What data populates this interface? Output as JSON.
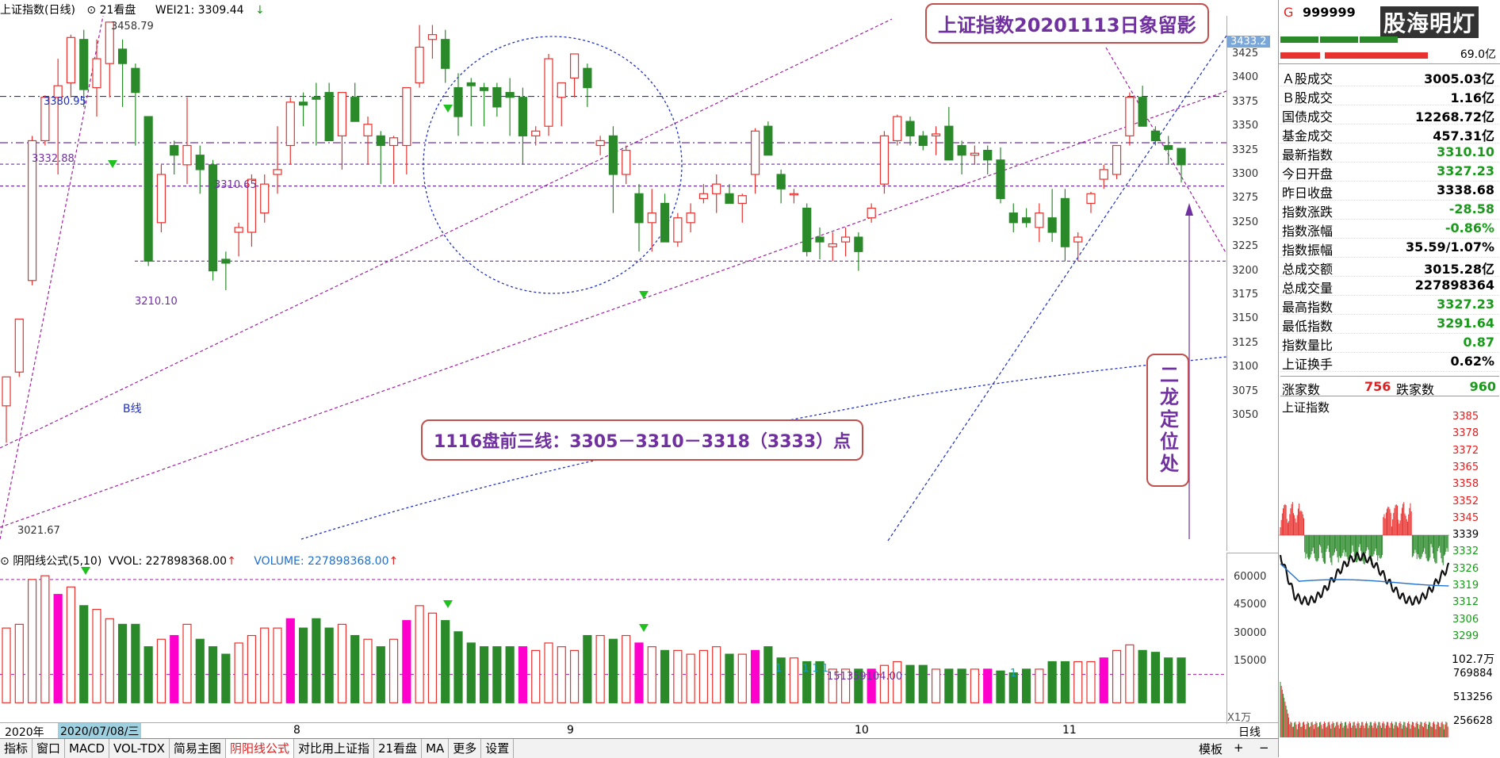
{
  "topbar": {
    "index_name": "上证指数(日线)",
    "panel_mode": "21看盘",
    "indicator": "WEI21: 3309.44",
    "indicator_arrow": "↓"
  },
  "price_axis": [
    "3425",
    "3400",
    "3375",
    "3350",
    "3325",
    "3300",
    "3275",
    "3250",
    "3225",
    "3200",
    "3175",
    "3150",
    "3125",
    "3100",
    "3075",
    "3050"
  ],
  "price_axis_highlight": "3433.2",
  "volume_axis": [
    "60000",
    "45000",
    "30000",
    "15000"
  ],
  "volume_axis_unit": "X1万",
  "volume_header": {
    "formula": "阴阳线公式(5,10)",
    "vvol": "VVOL: 227898368.00",
    "volume": "VOLUME: 227898368.00"
  },
  "price_labels": {
    "high": "3458.79",
    "lvl_3380": "3380.95",
    "lvl_3332": "3332.88",
    "lvl_3310": "3310.65",
    "lvl_3210": "3210.10",
    "low": "3021.67",
    "b_line": "B线"
  },
  "volume_labels": {
    "ones_a": "1",
    "ones_b": "1 1 1",
    "ones_c": "1",
    "vol_value": "151359104.00"
  },
  "date_axis": {
    "year": "2020年",
    "cursor_date": "2020/07/08/三",
    "months": [
      "8",
      "9",
      "10",
      "11"
    ],
    "period": "日线"
  },
  "callouts": {
    "title": "上证指数20201113日象留影",
    "plan": "1116盘前三线：3305－3310－3318（3333）点",
    "vertical": "二龙定位处"
  },
  "bottom_tabs": [
    "指标",
    "窗口",
    "MACD",
    "VOL-TDX",
    "简易主图",
    "阴阳线公式",
    "对比用上证指",
    "21看盘",
    "MA",
    "更多",
    "设置"
  ],
  "bottom_right": {
    "template": "模板",
    "plus": "+",
    "minus": "−"
  },
  "quote_panel": {
    "header_marker": "G",
    "header_code": "999999",
    "watermark": "股海明灯",
    "turnover_top": "69.0亿",
    "rows": [
      {
        "label": "Ａ股成交",
        "value": "3005.03亿",
        "color": "blk"
      },
      {
        "label": "Ｂ股成交",
        "value": "1.16亿",
        "color": "blk"
      },
      {
        "label": "国债成交",
        "value": "12268.72亿",
        "color": "blk"
      },
      {
        "label": "基金成交",
        "value": "457.31亿",
        "color": "blk"
      },
      {
        "label": "最新指数",
        "value": "3310.10",
        "color": "green"
      },
      {
        "label": "今日开盘",
        "value": "3327.23",
        "color": "green"
      },
      {
        "label": "昨日收盘",
        "value": "3338.68",
        "color": "blk"
      },
      {
        "label": "指数涨跌",
        "value": "-28.58",
        "color": "green"
      },
      {
        "label": "指数涨幅",
        "value": "-0.86%",
        "color": "green"
      },
      {
        "label": "指数振幅",
        "value": "35.59/1.07%",
        "color": "blk"
      },
      {
        "label": "总成交额",
        "value": "3015.28亿",
        "color": "blk"
      },
      {
        "label": "总成交量",
        "value": "227898364",
        "color": "blk"
      },
      {
        "label": "最高指数",
        "value": "3327.23",
        "color": "green"
      },
      {
        "label": "最低指数",
        "value": "3291.64",
        "color": "green"
      },
      {
        "label": "指数量比",
        "value": "0.87",
        "color": "green"
      },
      {
        "label": "上证换手",
        "value": "0.62%",
        "color": "blk"
      }
    ],
    "breadth": {
      "up_label": "涨家数",
      "up_value": "756",
      "down_label": "跌家数",
      "down_value": "960"
    },
    "intraday_title": "上证指数",
    "intraday_axis": [
      "3385",
      "3378",
      "3372",
      "3365",
      "3358",
      "3352",
      "3345",
      "3339",
      "3332",
      "3326",
      "3319",
      "3312",
      "3306",
      "3299"
    ],
    "intraday_vol_unit": "102.7万",
    "intraday_vol_axis": [
      "769884",
      "513256",
      "256628"
    ]
  },
  "colors": {
    "up": "#e8322f",
    "down": "#2a8a2a",
    "accent": "#c0504d",
    "purple": "#7030a0",
    "blue_dash": "#2030c0"
  }
}
